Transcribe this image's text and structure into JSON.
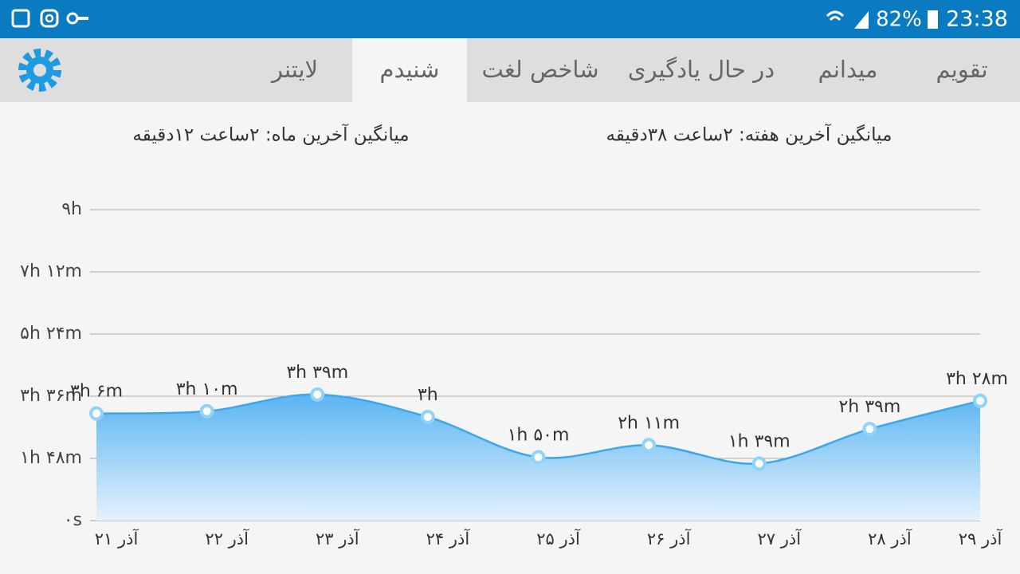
{
  "status_bar": {
    "battery": "82%",
    "time": "23:38"
  },
  "tabs": [
    "تقویم",
    "میدانم",
    "در حال یادگیری",
    "شاخص لغت",
    "شنیدم",
    "لایتنر"
  ],
  "active_tab": 4,
  "summary": {
    "week": "میانگین آخرین هفته: ۲ساعت ۳۸دقیقه",
    "month": "میانگین آخرین ماه: ۲ساعت ۱۲دقیقه"
  },
  "chart_data": {
    "type": "area",
    "categories": [
      "۲۱ آذر",
      "۲۲ آذر",
      "۲۳ آذر",
      "۲۴ آذر",
      "۲۵ آذر",
      "۲۶ آذر",
      "۲۷ آذر",
      "۲۸ آذر",
      "۲۹ آذر"
    ],
    "values": [
      186,
      190,
      219,
      180,
      110,
      131,
      99,
      159,
      208
    ],
    "value_labels": [
      "۳h ۶m",
      "۳h ۱۰m",
      "۳h ۳۹m",
      "۳h",
      "۱h ۵۰m",
      "۲h ۱۱m",
      "۱h ۳۹m",
      "۲h ۳۹m",
      "۳h ۲۸m"
    ],
    "color": "#3ea6ee",
    "ylim": [
      0,
      540
    ],
    "yticks": [
      {
        "value": 0,
        "label": "۰s"
      },
      {
        "value": 108,
        "label": "۱h ۴۸m"
      },
      {
        "value": 216,
        "label": "۳h ۳۶m"
      },
      {
        "value": 324,
        "label": "۵h ۲۴m"
      },
      {
        "value": 432,
        "label": "۷h ۱۲m"
      },
      {
        "value": 540,
        "label": "۹h"
      }
    ],
    "grid": true
  }
}
